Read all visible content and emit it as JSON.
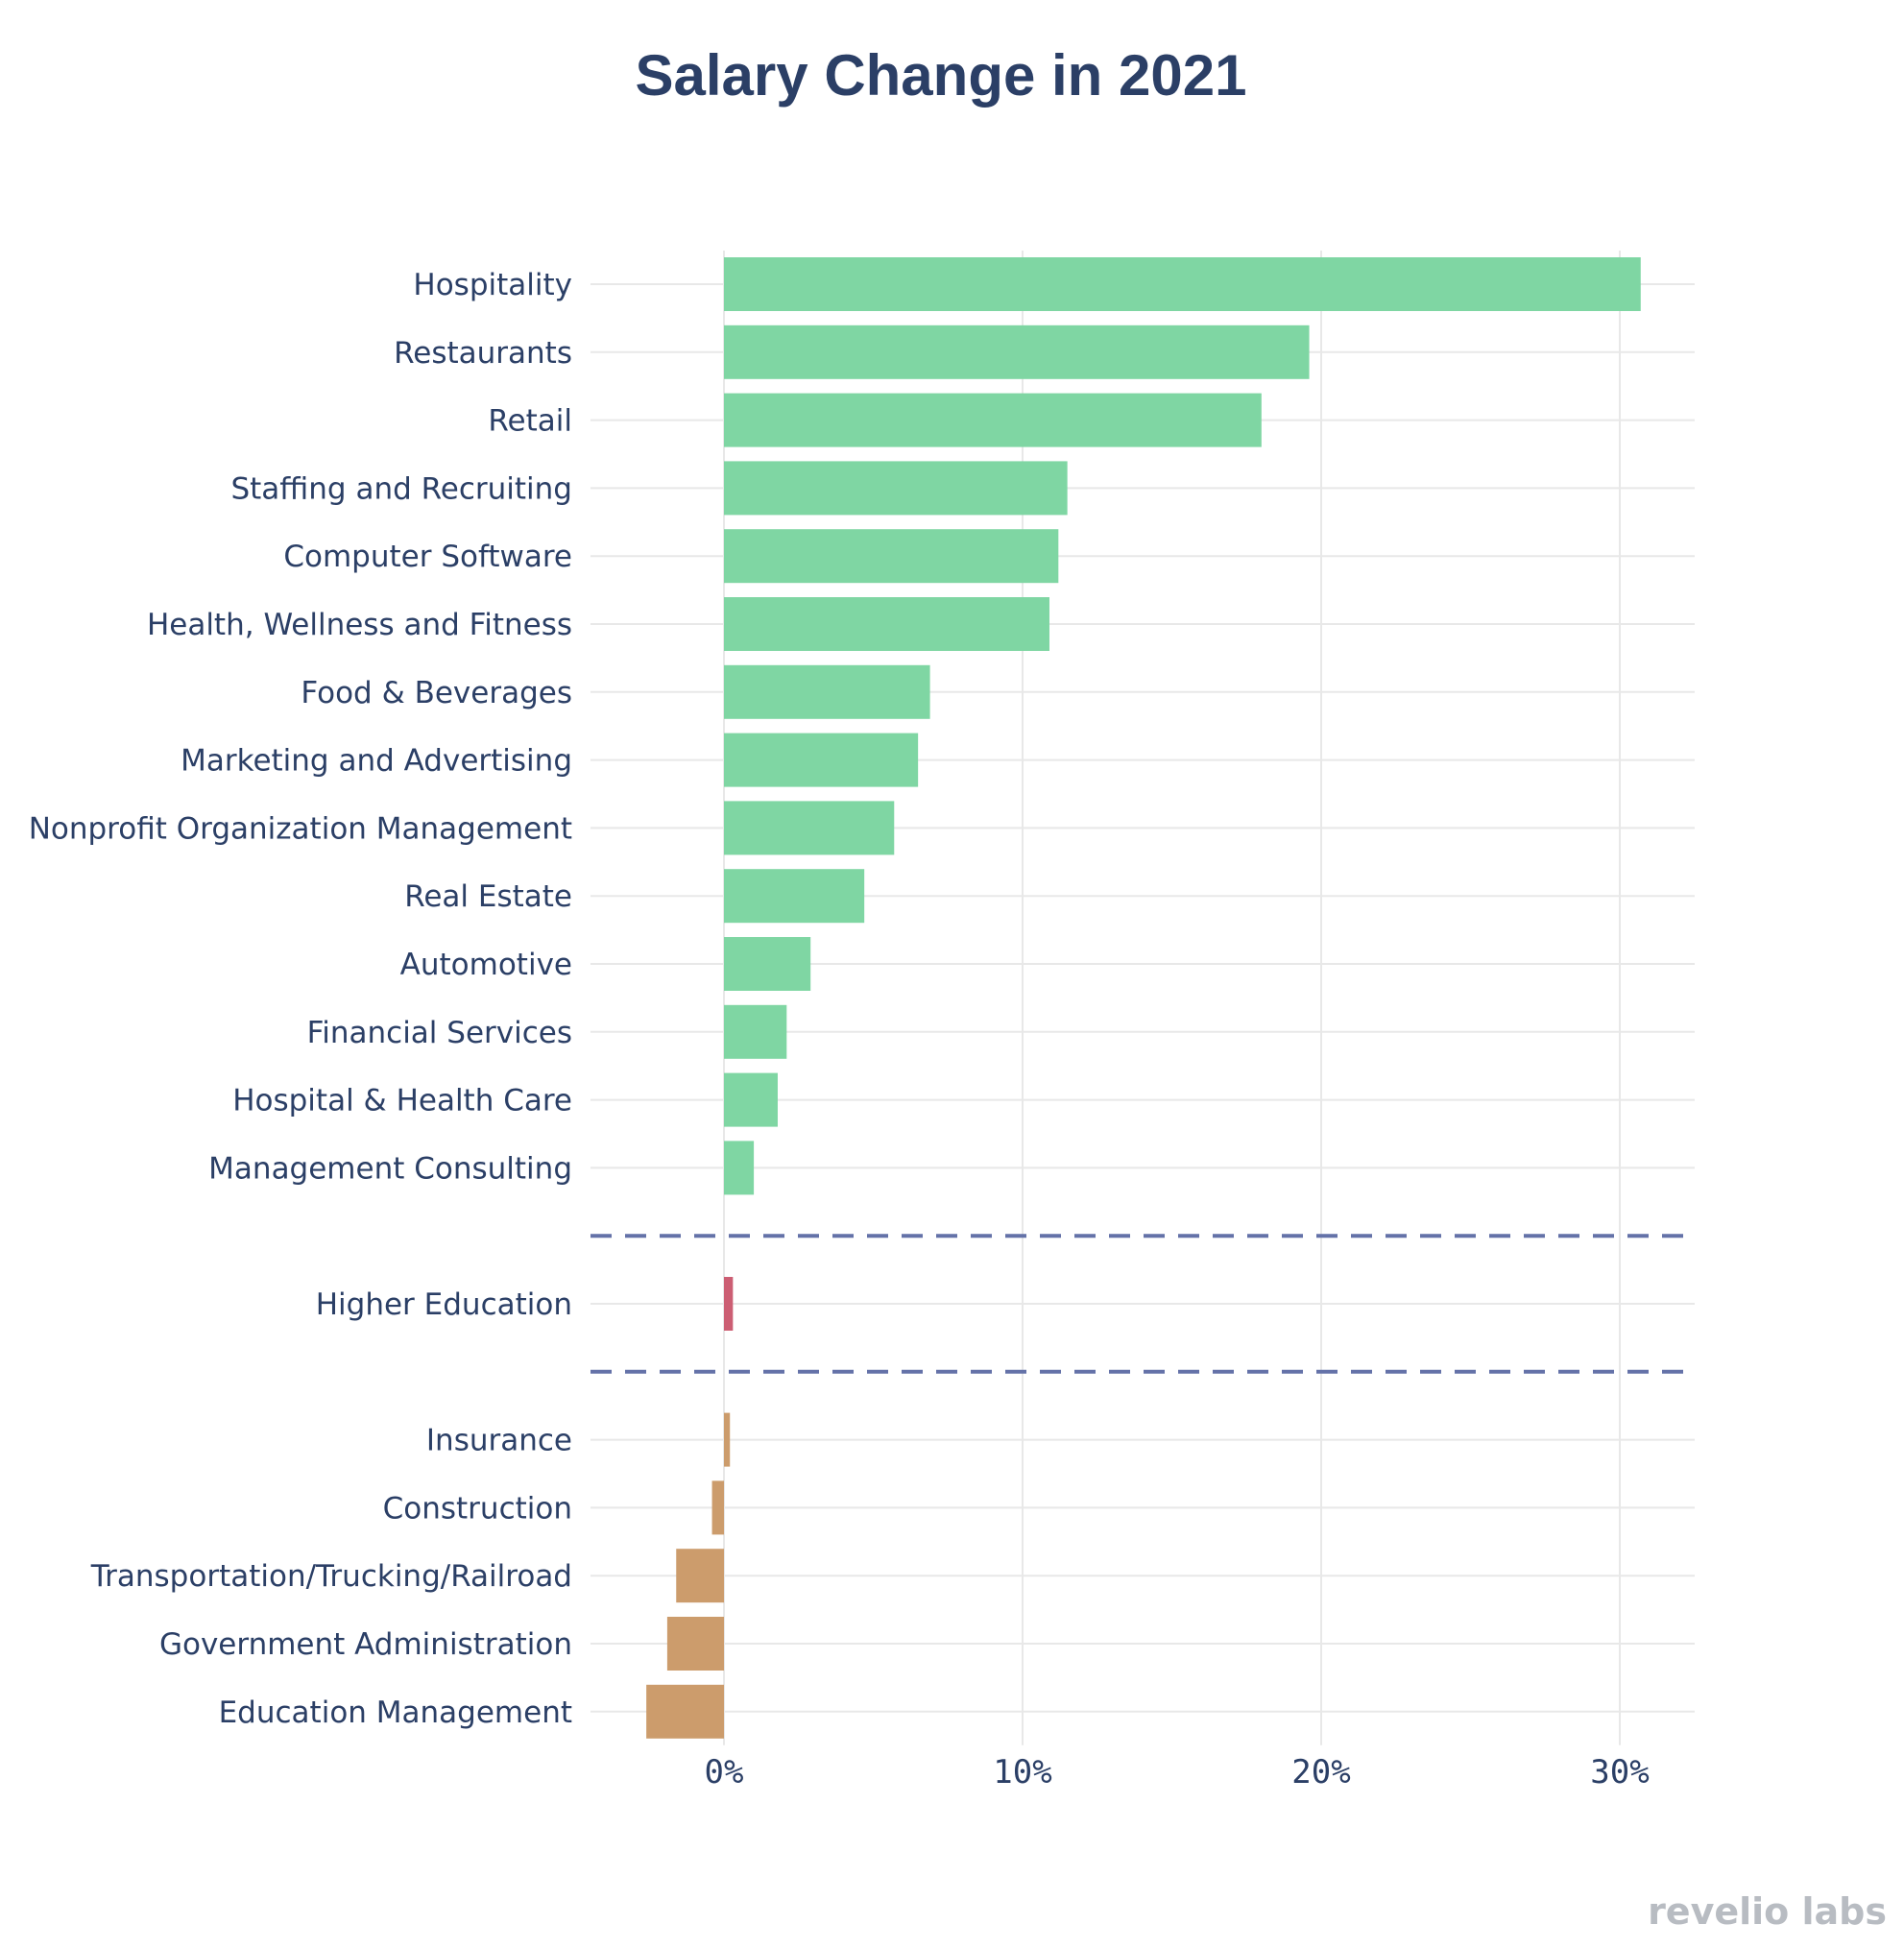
{
  "chart_data": {
    "type": "bar",
    "orientation": "horizontal",
    "title": "Salary Change in 2021",
    "xlabel": "",
    "ylabel": "",
    "xlim": [
      -4.4,
      32.5
    ],
    "xticks": [
      0,
      10,
      20,
      30
    ],
    "xtick_labels": [
      "0%",
      "10%",
      "20%",
      "30%"
    ],
    "grid": true,
    "groups": [
      {
        "color": "#7fd6a3",
        "items": [
          {
            "label": "Hospitality",
            "value": 30.7
          },
          {
            "label": "Restaurants",
            "value": 19.6
          },
          {
            "label": "Retail",
            "value": 18.0
          },
          {
            "label": "Staffing and Recruiting",
            "value": 11.5
          },
          {
            "label": "Computer Software",
            "value": 11.2
          },
          {
            "label": "Health, Wellness and Fitness",
            "value": 10.9
          },
          {
            "label": "Food & Beverages",
            "value": 6.9
          },
          {
            "label": "Marketing and Advertising",
            "value": 6.5
          },
          {
            "label": "Nonprofit Organization Management",
            "value": 5.7
          },
          {
            "label": "Real Estate",
            "value": 4.7
          },
          {
            "label": "Automotive",
            "value": 2.9
          },
          {
            "label": "Financial Services",
            "value": 2.1
          },
          {
            "label": "Hospital & Health Care",
            "value": 1.8
          },
          {
            "label": "Management Consulting",
            "value": 1.0
          }
        ]
      },
      {
        "color": "#cc5e73",
        "items": [
          {
            "label": "Higher Education",
            "value": 0.3
          }
        ]
      },
      {
        "color": "#cc9c6c",
        "items": [
          {
            "label": "Insurance",
            "value": 0.2
          },
          {
            "label": "Construction",
            "value": -0.4
          },
          {
            "label": "Transportation/Trucking/Railroad",
            "value": -1.6
          },
          {
            "label": "Government Administration",
            "value": -1.9
          },
          {
            "label": "Education Management",
            "value": -2.6
          }
        ]
      }
    ],
    "separator_color": "#6472a8",
    "grid_color": "#e8e8e8"
  },
  "watermark": "revelio labs"
}
